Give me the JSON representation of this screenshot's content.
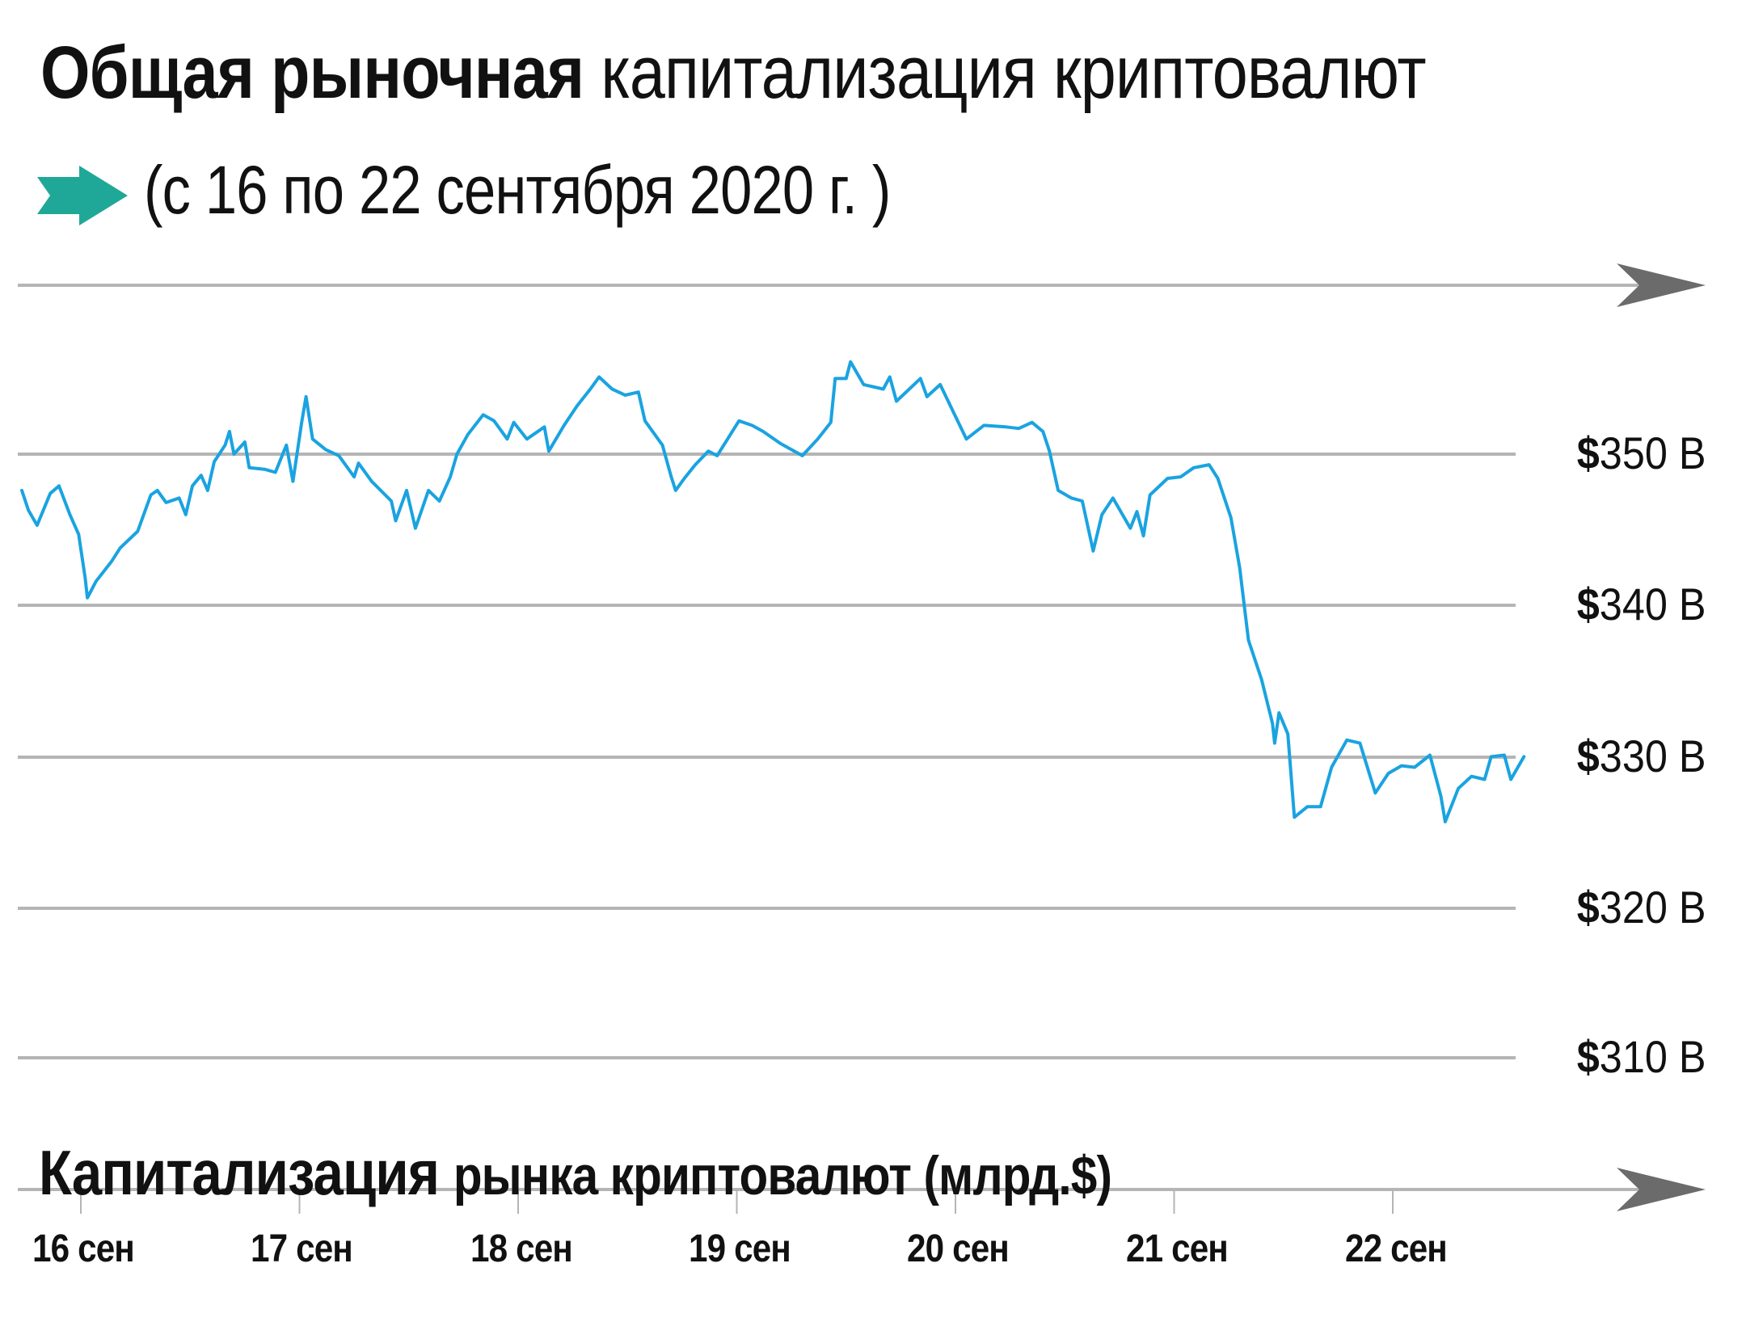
{
  "title": {
    "bold": "Общая рыночная",
    "regular": "капитализация криптовалют"
  },
  "subtitle": {
    "icon": "teal-right-arrow-icon",
    "text": "(с 16 по 22 сентября 2020 г. )"
  },
  "colors": {
    "line": "#1aa3e0",
    "grid": "#b5b5b5",
    "axis_arrow": "#6b6b6b",
    "accent_arrow": "#1fa898",
    "text": "#111111"
  },
  "y_axis": {
    "labels": [
      {
        "currency": "$",
        "value": "350 B"
      },
      {
        "currency": "$",
        "value": "340 B"
      },
      {
        "currency": "$",
        "value": "330 B"
      },
      {
        "currency": "$",
        "value": "320 B"
      },
      {
        "currency": "$",
        "value": "310 B"
      }
    ]
  },
  "x_axis": {
    "caption_bold": "Капитализация",
    "caption_regular": "рынка криптовалют (млрд.$)",
    "labels": [
      "16 сен",
      "17 сен",
      "18 сен",
      "19 сен",
      "20 сен",
      "21 сен",
      "22 сен"
    ]
  },
  "chart_data": {
    "type": "line",
    "title": "Общая рыночная капитализация криптовалют (с 16 по 22 сентября 2020 г.)",
    "xlabel": "",
    "ylabel": "Капитализация рынка криптовалют (млрд.$)",
    "categories": [
      "16 сен",
      "17 сен",
      "18 сен",
      "19 сен",
      "20 сен",
      "21 сен",
      "22 сен"
    ],
    "x_unit": "days since 16 сен 00:00",
    "ylim": [
      310,
      357
    ],
    "yticks": [
      310,
      320,
      330,
      340,
      350
    ],
    "ytick_labels": [
      "$310 B",
      "$320 B",
      "$330 B",
      "$340 B",
      "$350 B"
    ],
    "grid": true,
    "legend": "none",
    "series": [
      {
        "name": "Капитализация рынка криптовалют",
        "x": [
          -0.27,
          -0.24,
          -0.2,
          -0.14,
          -0.1,
          -0.05,
          -0.01,
          0.02,
          0.03,
          0.07,
          0.14,
          0.18,
          0.26,
          0.32,
          0.35,
          0.39,
          0.45,
          0.48,
          0.51,
          0.55,
          0.58,
          0.61,
          0.66,
          0.68,
          0.7,
          0.75,
          0.77,
          0.84,
          0.89,
          0.94,
          0.97,
          1.01,
          1.03,
          1.06,
          1.12,
          1.18,
          1.25,
          1.27,
          1.33,
          1.42,
          1.44,
          1.49,
          1.53,
          1.59,
          1.64,
          1.69,
          1.72,
          1.77,
          1.84,
          1.89,
          1.95,
          1.98,
          2.04,
          2.12,
          2.14,
          2.21,
          2.27,
          2.33,
          2.37,
          2.43,
          2.49,
          2.55,
          2.58,
          2.66,
          2.7,
          2.72,
          2.76,
          2.81,
          2.87,
          2.91,
          3.01,
          3.07,
          3.12,
          3.2,
          3.3,
          3.37,
          3.43,
          3.45,
          3.5,
          3.52,
          3.58,
          3.67,
          3.7,
          3.73,
          3.84,
          3.87,
          3.93,
          3.99,
          4.05,
          4.13,
          4.23,
          4.29,
          4.35,
          4.4,
          4.43,
          4.47,
          4.53,
          4.58,
          4.63,
          4.67,
          4.72,
          4.8,
          4.83,
          4.86,
          4.89,
          4.97,
          5.03,
          5.09,
          5.16,
          5.2,
          5.26,
          5.3,
          5.34,
          5.4,
          5.45,
          5.46,
          5.48,
          5.52,
          5.55,
          5.61,
          5.67,
          5.72,
          5.79,
          5.85,
          5.92,
          5.98,
          6.04,
          6.1,
          6.17,
          6.22,
          6.24,
          6.3,
          6.36,
          6.42,
          6.45,
          6.51,
          6.54,
          6.6
        ],
        "values": [
          347.6,
          346.3,
          345.3,
          347.4,
          347.9,
          346.0,
          344.7,
          341.8,
          340.5,
          341.6,
          342.9,
          343.8,
          344.9,
          347.3,
          347.6,
          346.8,
          347.1,
          346.0,
          347.9,
          348.6,
          347.6,
          349.5,
          350.6,
          351.5,
          350.0,
          350.8,
          349.1,
          349.0,
          348.8,
          350.6,
          348.2,
          352.1,
          353.8,
          351.0,
          350.3,
          349.9,
          348.5,
          349.4,
          348.2,
          346.9,
          345.6,
          347.6,
          345.1,
          347.6,
          346.9,
          348.5,
          350.0,
          351.3,
          352.6,
          352.2,
          351.0,
          352.1,
          351.0,
          351.8,
          350.2,
          351.9,
          353.2,
          354.3,
          355.1,
          354.3,
          353.9,
          354.1,
          352.2,
          350.6,
          348.5,
          347.6,
          348.4,
          349.3,
          350.2,
          349.9,
          352.2,
          351.9,
          351.5,
          350.7,
          349.9,
          351.0,
          352.1,
          355.0,
          355.0,
          356.1,
          354.6,
          354.3,
          355.1,
          353.5,
          355.0,
          353.8,
          354.6,
          352.8,
          351.0,
          351.9,
          351.8,
          351.7,
          352.1,
          351.5,
          350.2,
          347.6,
          347.1,
          346.9,
          343.6,
          346.0,
          347.1,
          345.1,
          346.2,
          344.6,
          347.3,
          348.4,
          348.5,
          349.1,
          349.3,
          348.4,
          345.8,
          342.5,
          337.7,
          335.1,
          332.2,
          330.9,
          332.9,
          331.5,
          326.0,
          326.7,
          326.7,
          329.3,
          331.1,
          330.9,
          327.6,
          328.9,
          329.4,
          329.3,
          330.1,
          327.4,
          325.7,
          327.9,
          328.7,
          328.5,
          330.0,
          330.1,
          328.5,
          330.0
        ]
      }
    ]
  }
}
